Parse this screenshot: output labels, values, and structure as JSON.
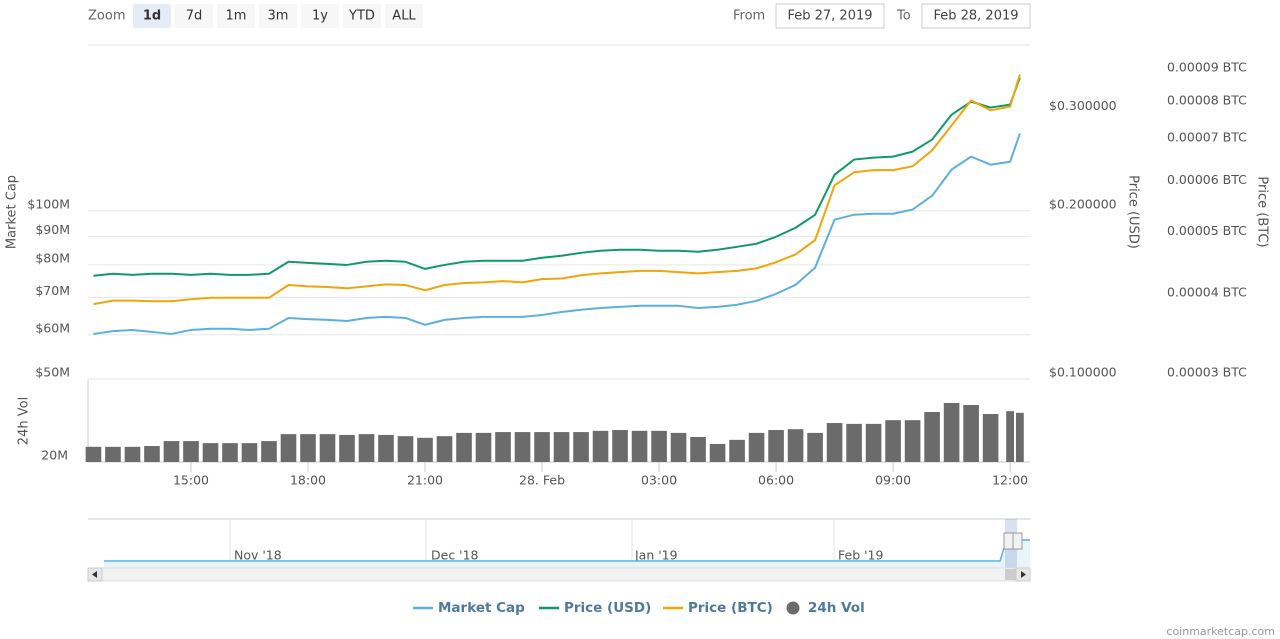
{
  "toolbar": {
    "zoom_label": "Zoom",
    "zoom_buttons": [
      "1d",
      "7d",
      "1m",
      "3m",
      "1y",
      "YTD",
      "ALL"
    ],
    "selected_zoom": 0,
    "from_label": "From",
    "from": "Feb 27, 2019",
    "to_label": "To",
    "to": "Feb 28, 2019"
  },
  "chart_data": {
    "type": "line",
    "log_scale": true,
    "grid": true,
    "x": [
      12.5,
      13,
      13.5,
      14,
      14.5,
      15,
      15.5,
      16,
      16.5,
      17,
      17.5,
      18,
      18.5,
      19,
      19.5,
      20,
      20.5,
      21,
      21.5,
      22,
      22.5,
      23,
      23.5,
      24,
      24.5,
      25,
      25.5,
      26,
      26.5,
      27,
      27.5,
      28,
      28.5,
      29,
      29.5,
      30,
      30.5,
      31,
      31.5,
      32,
      32.5,
      33,
      33.5,
      34,
      34.5,
      35,
      35.5,
      36,
      36.25
    ],
    "xlim": [
      12.36,
      36.51
    ],
    "xticks": [
      {
        "value": 15,
        "label": "15:00"
      },
      {
        "value": 18,
        "label": "18:00"
      },
      {
        "value": 21,
        "label": "21:00"
      },
      {
        "value": 24,
        "label": "28. Feb"
      },
      {
        "value": 27,
        "label": "03:00"
      },
      {
        "value": 30,
        "label": "06:00"
      },
      {
        "value": 33,
        "label": "09:00"
      },
      {
        "value": 36,
        "label": "12:00"
      }
    ],
    "ylabel": "Market Cap",
    "ylim": [
      50000000,
      198000000
    ],
    "yticks": [
      {
        "value": 50000000,
        "label": "$50M"
      },
      {
        "value": 60000000,
        "label": "$60M"
      },
      {
        "value": 70000000,
        "label": "$70M"
      },
      {
        "value": 80000000,
        "label": "$80M"
      },
      {
        "value": 90000000,
        "label": "$90M"
      },
      {
        "value": 100000000,
        "label": "$100M"
      }
    ],
    "y2label": "Price (USD)",
    "y2lim": [
      0.1,
      0.396
    ],
    "y2ticks": [
      {
        "value": 0.1,
        "label": "$0.100000"
      },
      {
        "value": 0.2,
        "label": "$0.200000"
      },
      {
        "value": 0.3,
        "label": "$0.300000"
      }
    ],
    "y3label": "Price (BTC)",
    "y3lim": [
      3e-05,
      0.0001
    ],
    "y3ticks": [
      {
        "value": 3e-05,
        "label": "0.00003 BTC"
      },
      {
        "value": 4e-05,
        "label": "0.00004 BTC"
      },
      {
        "value": 5e-05,
        "label": "0.00005 BTC"
      },
      {
        "value": 6e-05,
        "label": "0.00006 BTC"
      },
      {
        "value": 7e-05,
        "label": "0.00007 BTC"
      },
      {
        "value": 8e-05,
        "label": "0.00008 BTC"
      },
      {
        "value": 9e-05,
        "label": "0.00009 BTC"
      }
    ],
    "vol_label": "24h Vol",
    "vol_ylim": [
      20000000,
      40000000
    ],
    "vol_yticks": [
      {
        "value": 20000000,
        "label": "20M"
      }
    ],
    "series": [
      {
        "name": "Market Cap",
        "color": "#5cb0de",
        "axis": "y",
        "values": [
          60200000,
          60900000,
          61200000,
          60700000,
          60200000,
          61200000,
          61500000,
          61500000,
          61200000,
          61500000,
          64300000,
          64000000,
          63800000,
          63500000,
          64300000,
          64600000,
          64300000,
          62500000,
          63800000,
          64300000,
          64600000,
          64600000,
          64600000,
          65100000,
          65900000,
          66500000,
          67000000,
          67300000,
          67600000,
          67600000,
          67600000,
          67000000,
          67300000,
          67900000,
          69000000,
          71000000,
          73700000,
          79100000,
          96400000,
          98400000,
          98800000,
          98800000,
          100500000,
          106400000,
          118500000,
          125000000,
          120900000,
          122400000,
          137500000
        ]
      },
      {
        "name": "Price (USD)",
        "color": "#0f9a67",
        "axis": "y2",
        "values": [
          0.153,
          0.1543,
          0.1536,
          0.1543,
          0.1543,
          0.1536,
          0.1543,
          0.1536,
          0.1536,
          0.1543,
          0.1621,
          0.1614,
          0.1607,
          0.16,
          0.1621,
          0.1628,
          0.1621,
          0.1574,
          0.16,
          0.1621,
          0.1628,
          0.1628,
          0.1628,
          0.1648,
          0.1662,
          0.1682,
          0.1696,
          0.1703,
          0.1703,
          0.1696,
          0.1696,
          0.1689,
          0.1703,
          0.1724,
          0.1746,
          0.1797,
          0.1865,
          0.1967,
          0.2321,
          0.247,
          0.249,
          0.25,
          0.2552,
          0.2682,
          0.2972,
          0.3136,
          0.306,
          0.3097,
          0.3462
        ]
      },
      {
        "name": "Price (BTC)",
        "color": "#f3a40a",
        "axis": "y3",
        "values": [
          3.93e-05,
          3.98e-05,
          3.98e-05,
          3.97e-05,
          3.97e-05,
          4e-05,
          4.02e-05,
          4.02e-05,
          4.02e-05,
          4.02e-05,
          4.21e-05,
          4.19e-05,
          4.18e-05,
          4.16e-05,
          4.19e-05,
          4.22e-05,
          4.21e-05,
          4.13e-05,
          4.21e-05,
          4.24e-05,
          4.25e-05,
          4.27e-05,
          4.25e-05,
          4.3e-05,
          4.31e-05,
          4.36e-05,
          4.39e-05,
          4.41e-05,
          4.43e-05,
          4.43e-05,
          4.41e-05,
          4.39e-05,
          4.41e-05,
          4.43e-05,
          4.47e-05,
          4.57e-05,
          4.7e-05,
          4.95e-05,
          6.03e-05,
          6.32e-05,
          6.37e-05,
          6.37e-05,
          6.46e-05,
          6.84e-05,
          7.48e-05,
          8.19e-05,
          7.9e-05,
          8.01e-05,
          8.99e-05
        ]
      },
      {
        "name": "24h Vol",
        "color": "#6b6b6b",
        "axis": "vol",
        "type": "bar",
        "values": [
          23700000,
          23700000,
          23700000,
          23900000,
          25100000,
          25100000,
          24600000,
          24600000,
          24600000,
          25100000,
          26800000,
          26800000,
          26800000,
          26600000,
          26800000,
          26600000,
          26300000,
          25900000,
          26300000,
          27100000,
          27100000,
          27300000,
          27300000,
          27300000,
          27300000,
          27300000,
          27600000,
          27800000,
          27600000,
          27600000,
          27100000,
          26100000,
          24400000,
          25400000,
          27100000,
          27800000,
          28000000,
          27100000,
          29500000,
          29300000,
          29300000,
          30200000,
          30200000,
          32200000,
          34400000,
          33900000,
          31700000,
          32400000,
          32000000
        ]
      }
    ]
  },
  "navigator": {
    "labels": [
      "Nov '18",
      "Dec '18",
      "Jan '19",
      "Feb '19"
    ]
  },
  "credit": "coinmarketcap.com"
}
